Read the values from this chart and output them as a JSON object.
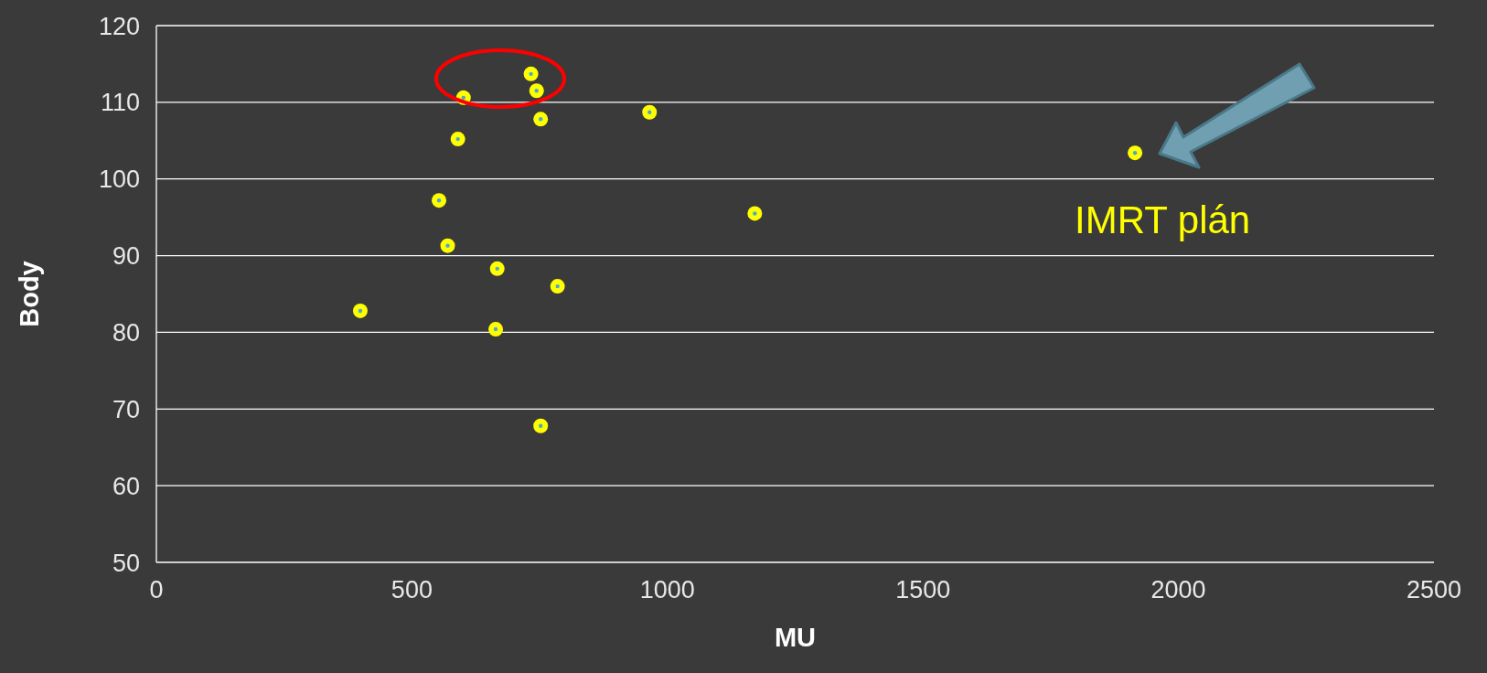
{
  "chart_data": {
    "type": "scatter",
    "xlabel": "MU",
    "ylabel": "Body",
    "x": [
      399,
      553,
      570,
      590,
      601,
      664,
      667,
      733,
      744,
      752,
      752,
      785,
      965,
      1171,
      1915
    ],
    "series": [
      {
        "color": "#ffff00",
        "values": [
          82.8,
          97.2,
          91.3,
          105.2,
          110.6,
          80.4,
          88.3,
          113.7,
          111.5,
          107.8,
          67.8,
          86.0,
          108.7,
          95.5,
          103.4
        ]
      }
    ],
    "xlim": [
      0,
      2500
    ],
    "xticks": [
      0,
      500,
      1000,
      1500,
      2000,
      2500
    ],
    "ylim": [
      50,
      120
    ],
    "yticks": [
      50,
      60,
      70,
      80,
      90,
      100,
      110,
      120
    ],
    "grid": "y",
    "marker": "circle",
    "legend": false,
    "annotations": [
      {
        "text": "IMRT plán",
        "x": 1915,
        "y": 103.4
      }
    ]
  }
}
